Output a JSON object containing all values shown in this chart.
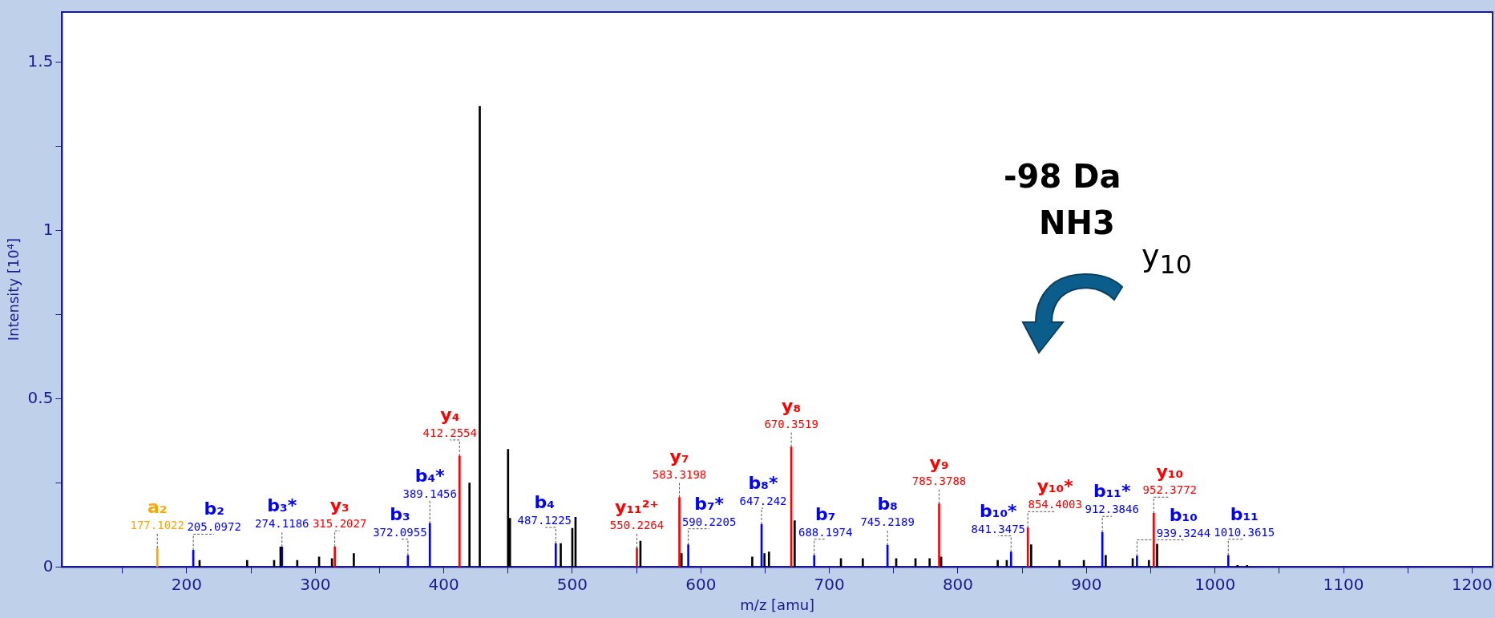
{
  "chart_data": {
    "type": "bar",
    "xlabel": "m/z [amu]",
    "ylabel": "Intensity [10⁴]",
    "xlim": [
      103,
      1216
    ],
    "xticks": [
      {
        "value": 150,
        "label": null
      },
      200,
      {
        "value": 250,
        "label": null
      },
      300,
      {
        "value": 350,
        "label": null
      },
      400,
      {
        "value": 450,
        "label": null
      },
      500,
      {
        "value": 550,
        "label": null
      },
      600,
      {
        "value": 650,
        "label": null
      },
      700,
      {
        "value": 750,
        "label": null
      },
      800,
      {
        "value": 850,
        "label": null
      },
      900,
      {
        "value": 950,
        "label": null
      },
      1000,
      {
        "value": 1050,
        "label": null
      },
      1100,
      {
        "value": 1150,
        "label": null
      },
      1200
    ],
    "ylim": [
      0,
      1.65
    ],
    "yticks": [
      0,
      {
        "value": 0.25,
        "label": null
      },
      0.5,
      {
        "value": 0.75,
        "label": null
      },
      1,
      {
        "value": 1.25,
        "label": null
      },
      1.5
    ],
    "grid": false,
    "legend": false,
    "series": [
      {
        "color": "#000000",
        "x": [
          210,
          247,
          268,
          273,
          286,
          303,
          313,
          330,
          420,
          428,
          450,
          451.5,
          491,
          500,
          502.5,
          553,
          585,
          640,
          649.5,
          653,
          673,
          709,
          726,
          752,
          767,
          778,
          787,
          831,
          838,
          857,
          879,
          898,
          915,
          936,
          948.6,
          955,
          1017.5,
          1025
        ],
        "values": [
          0.02,
          0.02,
          0.02,
          0.06,
          0.02,
          0.03,
          0.025,
          0.04,
          0.25,
          1.37,
          0.35,
          0.145,
          0.07,
          0.115,
          0.148,
          0.077,
          0.04,
          0.03,
          0.04,
          0.045,
          0.138,
          0.025,
          0.025,
          0.025,
          0.025,
          0.025,
          0.03,
          0.02,
          0.02,
          0.066,
          0.02,
          0.02,
          0.035,
          0.025,
          0.02,
          0.068,
          0.005,
          0.005
        ]
      },
      {
        "color": "#ffa500",
        "x": [
          177.1022
        ],
        "values": [
          0.056
        ]
      },
      {
        "color": "#0000ff",
        "x": [
          205.0972,
          274.1186,
          372.0955,
          389.1456,
          487.1225,
          590.2205,
          647.242,
          688.1974,
          745.2189,
          841.3475,
          912.3846,
          939.3244,
          1010.3615
        ],
        "values": [
          0.05,
          0.06,
          0.035,
          0.13,
          0.07,
          0.066,
          0.127,
          0.035,
          0.065,
          0.045,
          0.103,
          0.033,
          0.035
        ]
      },
      {
        "color": "#ff0000",
        "x": [
          315.2027,
          412.2554,
          550.2264,
          583.3198,
          670.3519,
          785.3788,
          854.4003,
          952.3772
        ],
        "values": [
          0.06,
          0.33,
          0.056,
          0.207,
          0.357,
          0.188,
          0.117,
          0.16
        ]
      }
    ],
    "annotations": [
      {
        "text": "a₂\n177.1022",
        "x": 177.1022,
        "y": 0.056
      },
      {
        "text": "b₂\n205.0972",
        "x": 205.0972,
        "y": 0.05
      },
      {
        "text": "b₃*\n274.1186",
        "x": 274.1186,
        "y": 0.06
      },
      {
        "text": "y₃\n315.2027",
        "x": 315.2027,
        "y": 0.06
      },
      {
        "text": "b₃\n372.0955",
        "x": 372.0955,
        "y": 0.035
      },
      {
        "text": "b₄*\n389.1456",
        "x": 389.1456,
        "y": 0.13
      },
      {
        "text": "y₄\n412.2554",
        "x": 412.2554,
        "y": 0.33
      },
      {
        "text": "b₄\n487.1225",
        "x": 487.1225,
        "y": 0.07
      },
      {
        "text": "y₁₁²⁺\n550.2264",
        "x": 550.2264,
        "y": 0.056
      },
      {
        "text": "y₇\n583.3198",
        "x": 583.3198,
        "y": 0.207
      },
      {
        "text": "b₇*\n590.2205",
        "x": 590.2205,
        "y": 0.066
      },
      {
        "text": "b₈*\n647.242",
        "x": 647.242,
        "y": 0.127
      },
      {
        "text": "y₈\n670.3519",
        "x": 670.3519,
        "y": 0.357
      },
      {
        "text": "b₇\n688.1974",
        "x": 688.1974,
        "y": 0.035
      },
      {
        "text": "b₈\n745.2189",
        "x": 745.2189,
        "y": 0.065
      },
      {
        "text": "y₉\n785.3788",
        "x": 785.3788,
        "y": 0.188
      },
      {
        "text": "b₁₀*\n841.3475",
        "x": 841.3475,
        "y": 0.045
      },
      {
        "text": "y₁₀*\n854.4003",
        "x": 854.4003,
        "y": 0.117
      },
      {
        "text": "b₁₁*\n912.3846",
        "x": 912.3846,
        "y": 0.103
      },
      {
        "text": "b₁₀\n939.3244",
        "x": 939.3244,
        "y": 0.033
      },
      {
        "text": "y₁₀\n952.3772",
        "x": 952.3772,
        "y": 0.16
      },
      {
        "text": "b₁₁\n1010.3615",
        "x": 1010.3615,
        "y": 0.035
      },
      "-98 Da",
      "NH3",
      "y$_{10}$"
    ]
  }
}
